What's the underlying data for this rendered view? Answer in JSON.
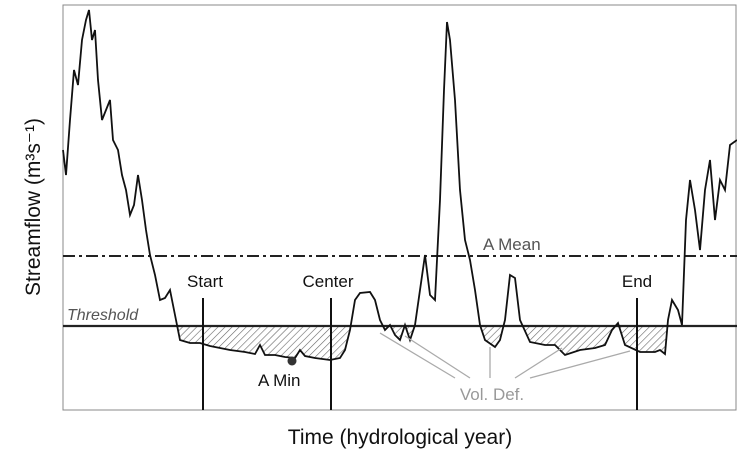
{
  "diagram": {
    "y_axis_label": "Streamflow (m³s⁻¹)",
    "x_axis_label": "Time (hydrological year)",
    "mean_label": "A Mean",
    "threshold_label": "Threshold",
    "start_label": "Start",
    "center_label": "Center",
    "end_label": "End",
    "min_label": "A Min",
    "deficit_label": "Vol. Def."
  }
}
